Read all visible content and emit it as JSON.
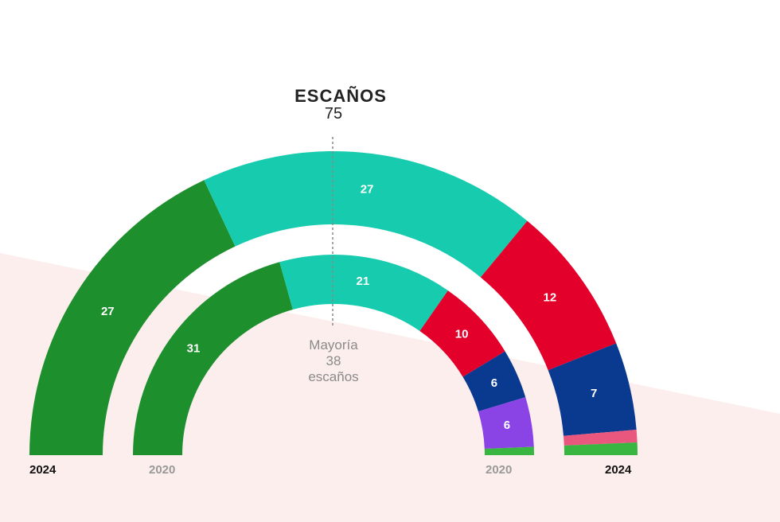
{
  "chart_data": {
    "type": "parliament-hemicycle",
    "title": "ESCAÑOS",
    "total_seats": "75",
    "majority": {
      "line1": "Mayoría",
      "line2": "38",
      "line3": "escaños"
    },
    "year_labels": {
      "outer_left": "2024",
      "inner_left": "2020",
      "inner_right": "2020",
      "outer_right": "2024"
    },
    "series": [
      {
        "year": "2024",
        "ring": "outer",
        "segments": [
          {
            "seats": 27,
            "label": "27",
            "color": "#1e8f2d"
          },
          {
            "seats": 27,
            "label": "27",
            "color": "#17ccae"
          },
          {
            "seats": 12,
            "label": "12",
            "color": "#e3002a"
          },
          {
            "seats": 7,
            "label": "7",
            "color": "#0a3a8f"
          },
          {
            "seats": 1,
            "label": "",
            "color": "#e9577f"
          },
          {
            "seats": 1,
            "label": "",
            "color": "#39b541"
          }
        ]
      },
      {
        "year": "2020",
        "ring": "inner",
        "segments": [
          {
            "seats": 31,
            "label": "31",
            "color": "#1e8f2d"
          },
          {
            "seats": 21,
            "label": "21",
            "color": "#17ccae"
          },
          {
            "seats": 10,
            "label": "10",
            "color": "#e3002a"
          },
          {
            "seats": 6,
            "label": "6",
            "color": "#0a3a8f"
          },
          {
            "seats": 6,
            "label": "6",
            "color": "#8a44e6"
          },
          {
            "seats": 1,
            "label": "",
            "color": "#39b541"
          }
        ]
      }
    ],
    "colors": {
      "background_tint": "#fdeeee",
      "majority_line": "#888888",
      "year_current": "#111111",
      "year_previous": "#999999"
    }
  }
}
